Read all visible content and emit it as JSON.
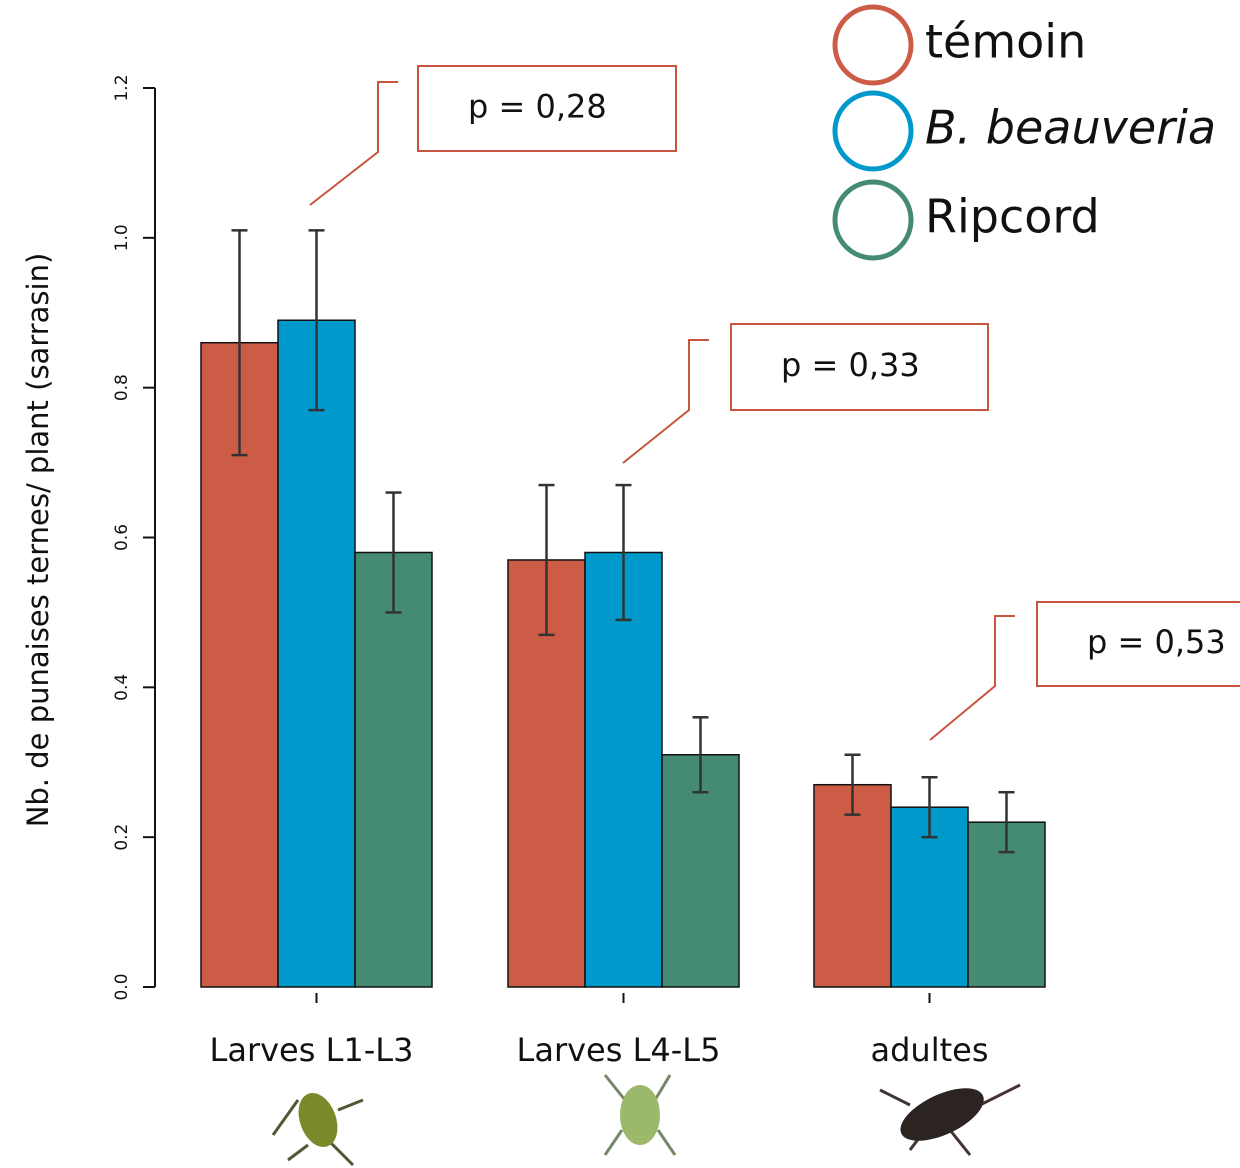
{
  "chart_data": {
    "type": "bar",
    "y_label": "Nb. de punaises ternes/ plant (sarrasin)",
    "categories": [
      "Larves L1-L3",
      "Larves L4-L5",
      "adultes"
    ],
    "series": [
      {
        "name": "témoin",
        "color": "#cd5c47",
        "values": [
          0.86,
          0.57,
          0.27
        ],
        "errors": [
          0.15,
          0.1,
          0.04
        ]
      },
      {
        "name": "B. beauveria",
        "color": "#0099cc",
        "values": [
          0.89,
          0.58,
          0.24
        ],
        "errors": [
          0.12,
          0.09,
          0.04
        ]
      },
      {
        "name": "Ripcord",
        "color": "#458b73",
        "values": [
          0.58,
          0.31,
          0.22
        ],
        "errors": [
          0.08,
          0.05,
          0.04
        ]
      }
    ],
    "annotations": [
      "p = 0,28",
      "p = 0,33",
      "p = 0,53"
    ],
    "ylim": [
      0,
      1.2
    ],
    "yticks": [
      {
        "value": 0,
        "label": "0.0"
      },
      0.2,
      0.4,
      0.6,
      0.8,
      {
        "value": 1,
        "label": "1.0"
      },
      1.2
    ],
    "grid": false
  }
}
